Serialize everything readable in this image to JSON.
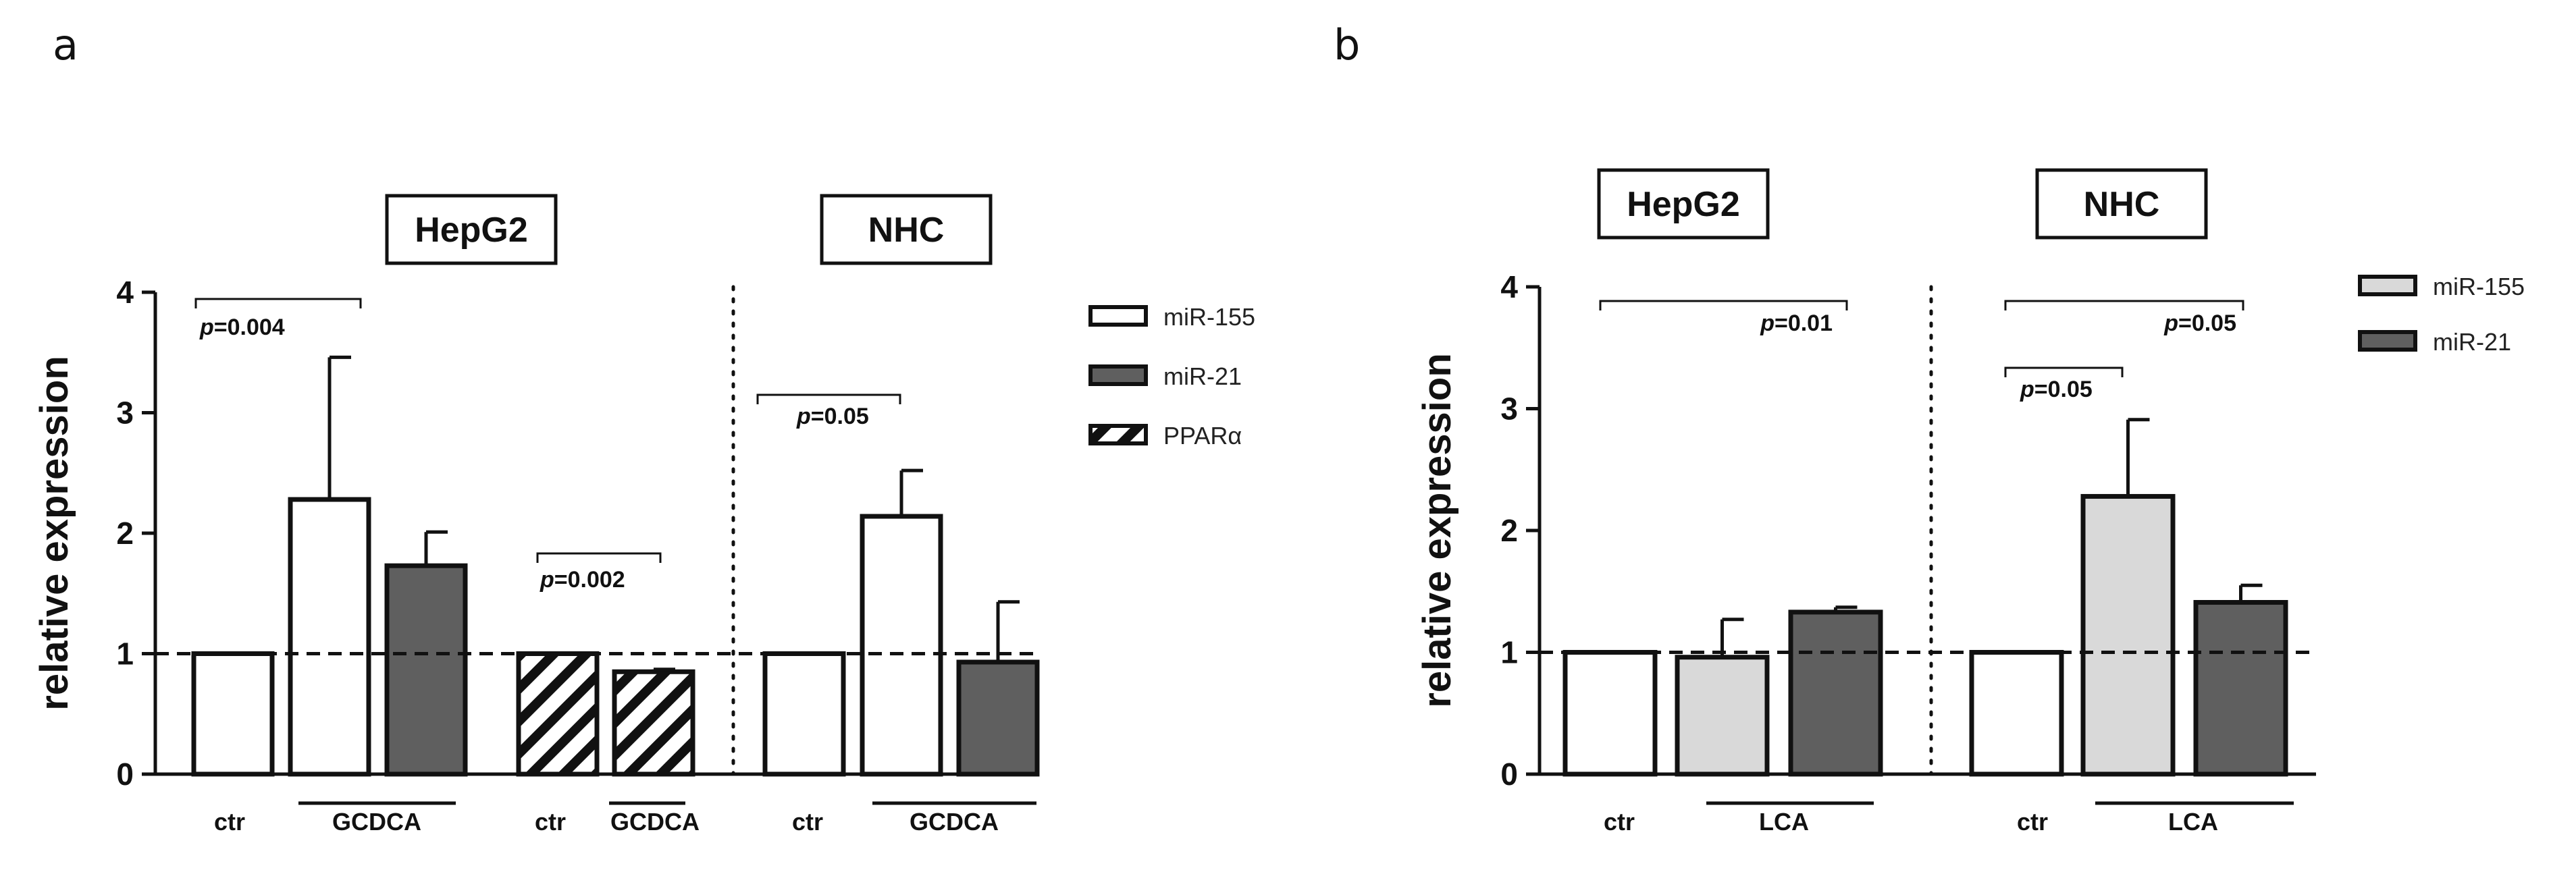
{
  "chart_data": [
    {
      "panel": "a",
      "type": "bar",
      "ylabel": "relative expression",
      "ylim": [
        0,
        4
      ],
      "yticks": [
        "0",
        "1",
        "2",
        "3",
        "4"
      ],
      "reference_line": 1,
      "cell_groups": [
        {
          "label": "HepG2",
          "series_groups": [
            "g1",
            "g2"
          ]
        },
        {
          "label": "NHC",
          "series_groups": [
            "g3"
          ]
        }
      ],
      "bars": [
        {
          "group": "g1",
          "condition": "ctr",
          "series": "miR-155",
          "value": 1.0,
          "error": 0
        },
        {
          "group": "g1",
          "condition": "GCDCA",
          "series": "miR-155",
          "value": 2.28,
          "error": 1.18
        },
        {
          "group": "g1",
          "condition": "GCDCA",
          "series": "miR-21",
          "value": 1.73,
          "error": 0.28
        },
        {
          "group": "g2",
          "condition": "ctr",
          "series": "PPARα",
          "value": 1.0,
          "error": 0
        },
        {
          "group": "g2",
          "condition": "GCDCA",
          "series": "PPARα",
          "value": 0.85,
          "error": 0.02
        },
        {
          "group": "g3",
          "condition": "ctr",
          "series": "miR-155",
          "value": 1.0,
          "error": 0
        },
        {
          "group": "g3",
          "condition": "GCDCA",
          "series": "miR-155",
          "value": 2.14,
          "error": 0.38
        },
        {
          "group": "g3",
          "condition": "GCDCA",
          "series": "miR-21",
          "value": 0.93,
          "error": 0.5
        }
      ],
      "category_labels": [
        {
          "text": "ctr",
          "group": "g1"
        },
        {
          "text": "GCDCA",
          "group": "g1"
        },
        {
          "text": "ctr",
          "group": "g2"
        },
        {
          "text": "GCDCA",
          "group": "g2"
        },
        {
          "text": "ctr",
          "group": "g3"
        },
        {
          "text": "GCDCA",
          "group": "g3"
        }
      ],
      "annotations": [
        {
          "text": "p=0.004"
        },
        {
          "text": "p=0.002"
        },
        {
          "text": "p=0.05"
        }
      ],
      "legend": [
        {
          "label": "miR-155",
          "style": "white"
        },
        {
          "label": "miR-21",
          "style": "dark"
        },
        {
          "label": "PPARα",
          "style": "hatch"
        }
      ]
    },
    {
      "panel": "b",
      "type": "bar",
      "ylabel": "relative expression",
      "ylim": [
        0,
        4
      ],
      "yticks": [
        "0",
        "1",
        "2",
        "3",
        "4"
      ],
      "reference_line": 1,
      "cell_groups": [
        {
          "label": "HepG2",
          "series_groups": [
            "g1"
          ]
        },
        {
          "label": "NHC",
          "series_groups": [
            "g2"
          ]
        }
      ],
      "bars": [
        {
          "group": "g1",
          "condition": "ctr",
          "series": "miR-155",
          "value": 1.0,
          "error": 0
        },
        {
          "group": "g1",
          "condition": "LCA",
          "series": "miR-155",
          "value": 0.96,
          "error": 0.31
        },
        {
          "group": "g1",
          "condition": "LCA",
          "series": "miR-21",
          "value": 1.33,
          "error": 0.04
        },
        {
          "group": "g2",
          "condition": "ctr",
          "series": "miR-155",
          "value": 1.0,
          "error": 0
        },
        {
          "group": "g2",
          "condition": "LCA",
          "series": "miR-155",
          "value": 2.28,
          "error": 0.63
        },
        {
          "group": "g2",
          "condition": "LCA",
          "series": "miR-21",
          "value": 1.41,
          "error": 0.14
        }
      ],
      "category_labels": [
        {
          "text": "ctr",
          "group": "g1"
        },
        {
          "text": "LCA",
          "group": "g1"
        },
        {
          "text": "ctr",
          "group": "g2"
        },
        {
          "text": "LCA",
          "group": "g2"
        }
      ],
      "annotations": [
        {
          "text": "p=0.01"
        },
        {
          "text": "p=0.05"
        },
        {
          "text": "p=0.05"
        }
      ],
      "legend": [
        {
          "label": "miR-155",
          "style": "light"
        },
        {
          "label": "miR-21",
          "style": "dark"
        }
      ]
    }
  ],
  "colors": {
    "bar_white": "#ffffff",
    "bar_light": "#d9d9d9",
    "bar_dark": "#5f5f5f",
    "outline": "#111111"
  }
}
